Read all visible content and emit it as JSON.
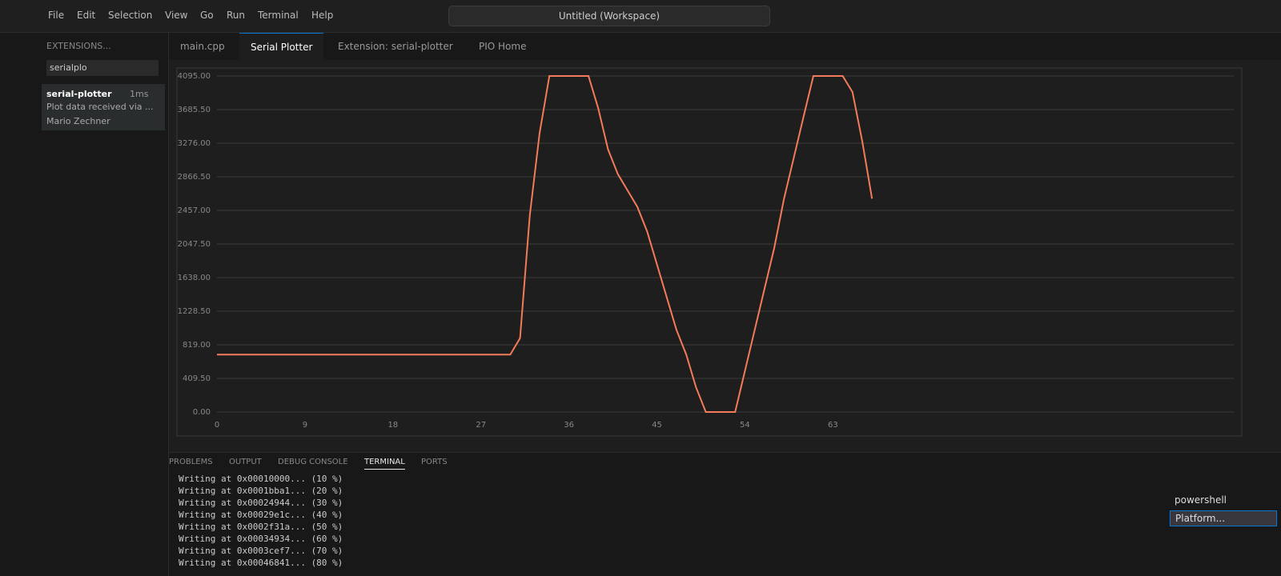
{
  "titlebar": {
    "menu": [
      "File",
      "Edit",
      "Selection",
      "View",
      "Go",
      "Run",
      "Terminal",
      "Help"
    ],
    "search": "Untitled (Workspace)"
  },
  "sidebar": {
    "header": "EXTENSIONS...",
    "search": "serialplo",
    "extension": {
      "name": "serial-plotter",
      "time": "1ms",
      "description": "Plot data received via ...",
      "author": "Mario Zechner"
    }
  },
  "tabs": [
    "main.cpp",
    "Serial Plotter",
    "Extension: serial-plotter",
    "PIO Home"
  ],
  "chart_data": {
    "type": "line",
    "x": [
      0,
      1,
      2,
      3,
      4,
      5,
      6,
      7,
      8,
      9,
      10,
      11,
      12,
      13,
      14,
      15,
      16,
      17,
      18,
      19,
      20,
      21,
      22,
      23,
      24,
      25,
      26,
      27,
      28,
      29,
      30,
      31,
      32,
      33,
      34,
      35,
      36,
      37,
      38,
      39,
      40,
      41,
      42,
      43,
      44,
      45,
      46,
      47,
      48,
      49,
      50,
      51,
      52,
      53,
      54,
      55,
      56,
      57,
      58,
      59,
      60,
      61,
      62,
      63,
      64,
      65,
      66,
      67
    ],
    "series": [
      {
        "color": "#f47b5a",
        "values": [
          700,
          700,
          700,
          700,
          700,
          700,
          700,
          700,
          700,
          700,
          700,
          700,
          700,
          700,
          700,
          700,
          700,
          700,
          700,
          700,
          700,
          700,
          700,
          700,
          700,
          700,
          700,
          700,
          700,
          700,
          700,
          900,
          2400,
          3400,
          4095,
          4095,
          4095,
          4095,
          4095,
          3700,
          3200,
          2900,
          2700,
          2500,
          2200,
          1800,
          1400,
          1000,
          700,
          300,
          0,
          0,
          0,
          0,
          500,
          1000,
          1500,
          2000,
          2600,
          3100,
          3600,
          4095,
          4095,
          4095,
          4095,
          3900,
          3300,
          2600
        ]
      }
    ],
    "xlim": [
      0,
      104
    ],
    "ylim": [
      0,
      4095
    ],
    "xticks": [
      0,
      9,
      18,
      27,
      36,
      45,
      54,
      63
    ],
    "yticks": [
      {
        "value": 0,
        "label": "0.00"
      },
      {
        "value": 409.5,
        "label": "409.50"
      },
      {
        "value": 819,
        "label": "819.00"
      },
      {
        "value": 1228.5,
        "label": "1228.50"
      },
      {
        "value": 1638,
        "label": "1638.00"
      },
      {
        "value": 2047.5,
        "label": "2047.50"
      },
      {
        "value": 2457,
        "label": "2457.00"
      },
      {
        "value": 2866.5,
        "label": "2866.50"
      },
      {
        "value": 3276,
        "label": "3276.00"
      },
      {
        "value": 3685.5,
        "label": "3685.50"
      },
      {
        "value": 4095,
        "label": "4095.00"
      }
    ],
    "grid": true
  },
  "panel": {
    "tabs": [
      "PROBLEMS",
      "OUTPUT",
      "DEBUG CONSOLE",
      "TERMINAL",
      "PORTS"
    ],
    "terminal_lines": [
      "Writing at 0x00010000... (10 %)",
      "Writing at 0x0001bba1... (20 %)",
      "Writing at 0x00024944... (30 %)",
      "Writing at 0x00029e1c... (40 %)",
      "Writing at 0x0002f31a... (50 %)",
      "Writing at 0x00034934... (60 %)",
      "Writing at 0x0003cef7... (70 %)",
      "Writing at 0x00046841... (80 %)"
    ],
    "terminals": [
      "powershell",
      "Platform..."
    ]
  }
}
